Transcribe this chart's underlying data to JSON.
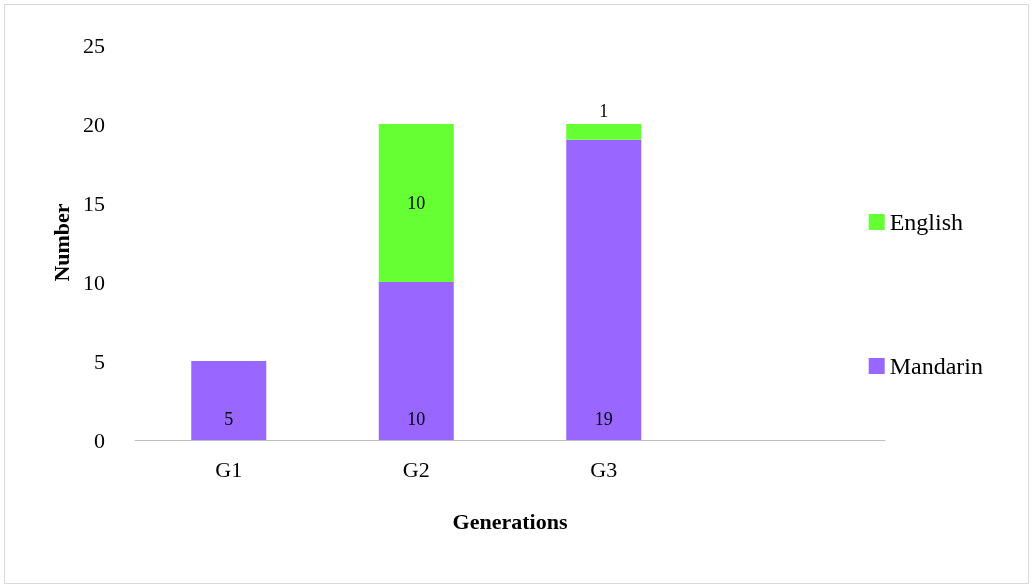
{
  "chart_data": {
    "type": "bar",
    "xlabel": "Generations",
    "ylabel": "Number",
    "categories": [
      "G1",
      "G2",
      "G3",
      null
    ],
    "series": [
      {
        "name": "Mandarin",
        "color": "#9966ff",
        "values": [
          5,
          10,
          19,
          null
        ]
      },
      {
        "name": "English",
        "color": "#66ff33",
        "values": [
          null,
          10,
          1,
          null
        ]
      }
    ],
    "stacked": true,
    "ylim": [
      0,
      25
    ],
    "yticks": [
      0,
      5,
      10,
      15,
      20,
      25
    ],
    "grid": false,
    "legend": "right",
    "data_labels": true
  }
}
